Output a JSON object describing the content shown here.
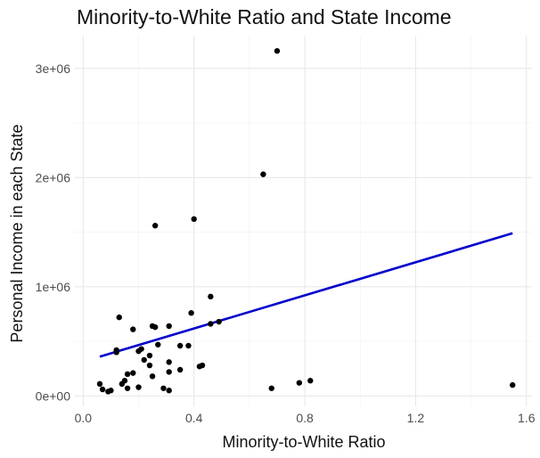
{
  "chart_data": {
    "type": "scatter",
    "title": "Minority-to-White Ratio and State Income",
    "xlabel": "Minority-to-White Ratio",
    "ylabel": "Personal Income in each State",
    "xlim": [
      -0.03,
      1.62
    ],
    "ylim": [
      -95000,
      3300000
    ],
    "x_ticks": [
      0.0,
      0.4,
      0.8,
      1.2,
      1.6
    ],
    "x_tick_labels": [
      "0.0",
      "0.4",
      "0.8",
      "1.2",
      "1.6"
    ],
    "y_ticks": [
      0,
      1000000,
      2000000,
      3000000
    ],
    "y_tick_labels": [
      "0e+00",
      "1e+06",
      "2e+06",
      "3e+06"
    ],
    "grid": true,
    "legend": "none",
    "point_color": "#000000",
    "trend_color": "#0000cc",
    "series": [
      {
        "points": [
          [
            0.7,
            3160000
          ],
          [
            0.65,
            2030000
          ],
          [
            0.4,
            1620000
          ],
          [
            0.26,
            1560000
          ],
          [
            0.46,
            910000
          ],
          [
            0.39,
            760000
          ],
          [
            0.13,
            720000
          ],
          [
            0.49,
            680000
          ],
          [
            0.46,
            660000
          ],
          [
            0.25,
            640000
          ],
          [
            0.26,
            630000
          ],
          [
            0.31,
            640000
          ],
          [
            0.18,
            610000
          ],
          [
            0.21,
            430000
          ],
          [
            0.2,
            410000
          ],
          [
            0.12,
            400000
          ],
          [
            0.12,
            420000
          ],
          [
            0.27,
            470000
          ],
          [
            0.35,
            460000
          ],
          [
            0.38,
            460000
          ],
          [
            0.24,
            370000
          ],
          [
            0.22,
            330000
          ],
          [
            0.31,
            310000
          ],
          [
            0.24,
            280000
          ],
          [
            0.43,
            280000
          ],
          [
            0.42,
            270000
          ],
          [
            0.35,
            240000
          ],
          [
            0.31,
            220000
          ],
          [
            0.18,
            210000
          ],
          [
            0.16,
            200000
          ],
          [
            0.25,
            180000
          ],
          [
            0.15,
            140000
          ],
          [
            0.14,
            110000
          ],
          [
            0.06,
            110000
          ],
          [
            0.07,
            60000
          ],
          [
            0.09,
            40000
          ],
          [
            0.1,
            50000
          ],
          [
            0.16,
            70000
          ],
          [
            0.2,
            80000
          ],
          [
            0.29,
            70000
          ],
          [
            0.31,
            50000
          ],
          [
            0.68,
            70000
          ],
          [
            0.78,
            120000
          ],
          [
            0.82,
            140000
          ],
          [
            1.55,
            100000
          ]
        ]
      }
    ],
    "trend_line": [
      [
        0.06,
        360000
      ],
      [
        1.55,
        1490000
      ]
    ]
  }
}
